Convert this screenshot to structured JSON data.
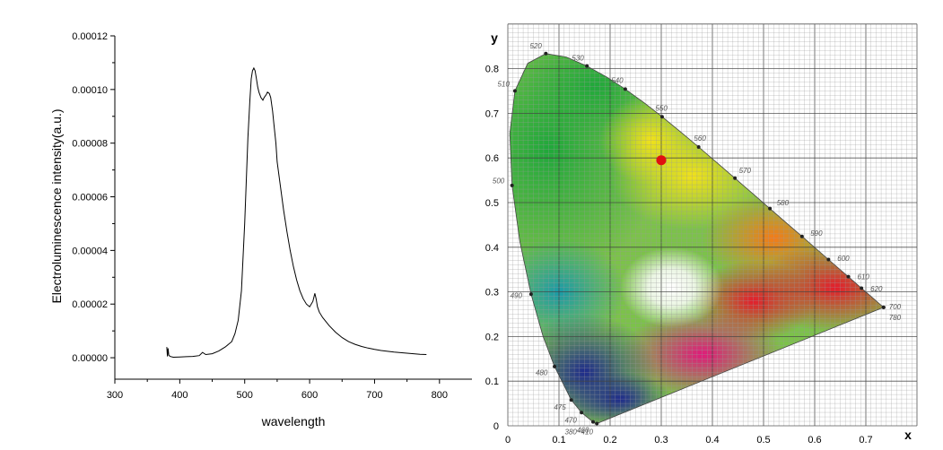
{
  "chart_data": [
    {
      "type": "line",
      "title": "",
      "xlabel": "wavelength",
      "ylabel": "Electroluminescence intensity(a.u.)",
      "xlim": [
        300,
        850
      ],
      "ylim": [
        -8e-06,
        0.00012
      ],
      "x_ticks": [
        300,
        400,
        500,
        600,
        700,
        800
      ],
      "x_tick_labels": [
        "300",
        "400",
        "500",
        "600",
        "700",
        "800"
      ],
      "y_ticks": [
        0,
        2e-05,
        4e-05,
        6e-05,
        8e-05,
        0.0001,
        0.00012
      ],
      "y_tick_labels": [
        "0.00000",
        "0.00002",
        "0.00004",
        "0.00006",
        "0.00008",
        "0.00010",
        "0.00012"
      ],
      "grid": false,
      "series": [
        {
          "color": "#000000",
          "x": [
            380,
            381,
            382,
            383,
            385,
            390,
            400,
            410,
            420,
            430,
            435,
            440,
            450,
            460,
            470,
            480,
            485,
            490,
            495,
            500,
            505,
            508,
            510,
            512,
            514,
            516,
            518,
            520,
            522,
            525,
            528,
            530,
            533,
            535,
            538,
            540,
            543,
            545,
            548,
            550,
            555,
            560,
            565,
            570,
            575,
            580,
            585,
            590,
            595,
            600,
            605,
            608,
            610,
            612,
            615,
            620,
            630,
            640,
            650,
            660,
            670,
            680,
            690,
            700,
            710,
            720,
            730,
            740,
            750,
            760,
            770,
            780
          ],
          "y": [
            4e-06,
            5e-07,
            3.5e-06,
            1e-06,
            5e-07,
            2e-07,
            3e-07,
            4e-07,
            5e-07,
            8e-07,
            2e-06,
            1.2e-06,
            1.5e-06,
            2.5e-06,
            4e-06,
            6e-06,
            9e-06,
            1.4e-05,
            2.5e-05,
            5e-05,
            8.2e-05,
            9.6e-05,
            0.000104,
            0.000107,
            0.000108,
            0.000107,
            0.000104,
            0.000101,
            9.9e-05,
            9.7e-05,
            9.6e-05,
            9.7e-05,
            9.8e-05,
            9.9e-05,
            9.85e-05,
            9.7e-05,
            9.2e-05,
            8.7e-05,
            8e-05,
            7.3e-05,
            6.4e-05,
            5.5e-05,
            4.7e-05,
            4e-05,
            3.4e-05,
            2.9e-05,
            2.5e-05,
            2.2e-05,
            2e-05,
            1.9e-05,
            2.1e-05,
            2.4e-05,
            2.2e-05,
            1.9e-05,
            1.7e-05,
            1.5e-05,
            1.2e-05,
            9.5e-06,
            7.5e-06,
            6e-06,
            5e-06,
            4.2e-06,
            3.6e-06,
            3.1e-06,
            2.7e-06,
            2.4e-06,
            2.1e-06,
            1.9e-06,
            1.7e-06,
            1.5e-06,
            1.3e-06,
            1.2e-06
          ]
        }
      ]
    },
    {
      "type": "scatter",
      "title": "",
      "xlabel": "x",
      "ylabel": "y",
      "xlim": [
        0,
        0.8
      ],
      "ylim": [
        0,
        0.9
      ],
      "x_ticks": [
        0,
        0.1,
        0.2,
        0.3,
        0.4,
        0.5,
        0.6,
        0.7
      ],
      "x_tick_labels": [
        "0",
        "0.1",
        "0.2",
        "0.3",
        "0.4",
        "0.5",
        "0.6",
        "0.7"
      ],
      "y_ticks": [
        0,
        0.1,
        0.2,
        0.3,
        0.4,
        0.5,
        0.6,
        0.7,
        0.8
      ],
      "y_tick_labels": [
        "0",
        "0.1",
        "0.2",
        "0.3",
        "0.4",
        "0.5",
        "0.6",
        "0.7",
        "0.8"
      ],
      "grid": true,
      "points": [
        {
          "x": 0.3,
          "y": 0.595,
          "color": "#e01010"
        }
      ],
      "spectral_locus_labels": [
        {
          "x": 0.1741,
          "y": 0.005,
          "label": "380~410"
        },
        {
          "x": 0.1666,
          "y": 0.0089,
          "label": "460"
        },
        {
          "x": 0.144,
          "y": 0.0297,
          "label": "470"
        },
        {
          "x": 0.1241,
          "y": 0.0578,
          "label": "475"
        },
        {
          "x": 0.0913,
          "y": 0.1327,
          "label": "480"
        },
        {
          "x": 0.0454,
          "y": 0.295,
          "label": "490"
        },
        {
          "x": 0.0082,
          "y": 0.5384,
          "label": "500"
        },
        {
          "x": 0.0139,
          "y": 0.7502,
          "label": "510"
        },
        {
          "x": 0.0743,
          "y": 0.8338,
          "label": "520"
        },
        {
          "x": 0.1547,
          "y": 0.8059,
          "label": "530"
        },
        {
          "x": 0.2296,
          "y": 0.7543,
          "label": "540"
        },
        {
          "x": 0.3016,
          "y": 0.6923,
          "label": "550"
        },
        {
          "x": 0.3731,
          "y": 0.6245,
          "label": "560"
        },
        {
          "x": 0.4441,
          "y": 0.5547,
          "label": "570"
        },
        {
          "x": 0.5125,
          "y": 0.4866,
          "label": "580"
        },
        {
          "x": 0.5752,
          "y": 0.4242,
          "label": "590"
        },
        {
          "x": 0.627,
          "y": 0.3725,
          "label": "600"
        },
        {
          "x": 0.6658,
          "y": 0.334,
          "label": "610"
        },
        {
          "x": 0.6915,
          "y": 0.3083,
          "label": "620"
        },
        {
          "x": 0.7347,
          "y": 0.2653,
          "label": "700"
        },
        {
          "x": 0.7347,
          "y": 0.2653,
          "label": "780"
        }
      ]
    }
  ]
}
